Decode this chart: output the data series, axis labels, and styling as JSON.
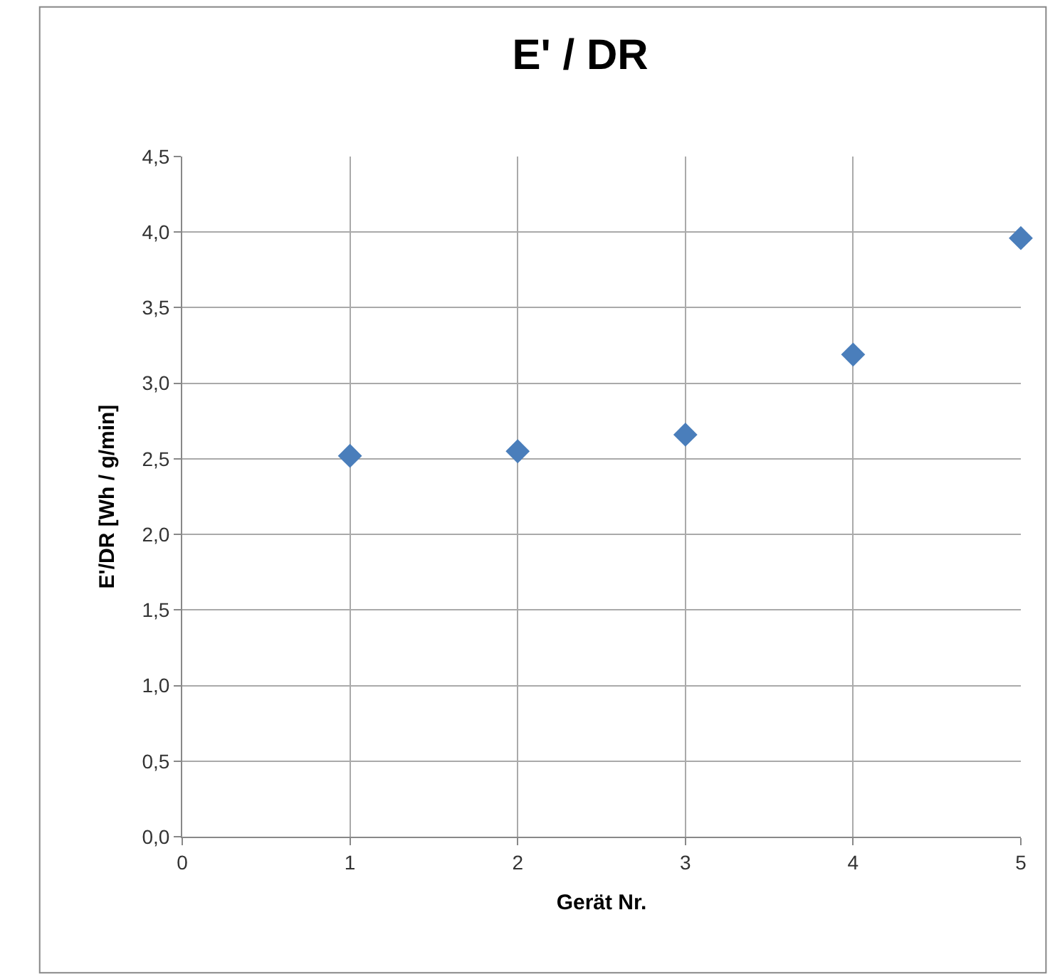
{
  "chart_data": {
    "type": "scatter",
    "title": "E' / DR",
    "xlabel": "Gerät Nr.",
    "ylabel": "E'/DR [Wh / g/min]",
    "x": [
      1,
      2,
      3,
      4,
      5
    ],
    "series": [
      {
        "color": "#4a7ebb",
        "values": [
          2.52,
          2.55,
          2.66,
          3.19,
          3.96
        ]
      }
    ],
    "xlim": [
      0,
      5
    ],
    "xticks": [
      0,
      1,
      2,
      3,
      4,
      5
    ],
    "ylim": [
      0,
      4.5
    ],
    "yticks": [
      {
        "value": 0,
        "label": "0,0"
      },
      {
        "value": 0.5,
        "label": "0,5"
      },
      {
        "value": 1,
        "label": "1,0"
      },
      {
        "value": 1.5,
        "label": "1,5"
      },
      {
        "value": 2,
        "label": "2,0"
      },
      {
        "value": 2.5,
        "label": "2,5"
      },
      {
        "value": 3,
        "label": "3,0"
      },
      {
        "value": 3.5,
        "label": "3,5"
      },
      {
        "value": 4,
        "label": "4,0"
      },
      {
        "value": 4.5,
        "label": "4,5"
      }
    ],
    "grid": true,
    "marker": "diamond",
    "legend": false
  }
}
